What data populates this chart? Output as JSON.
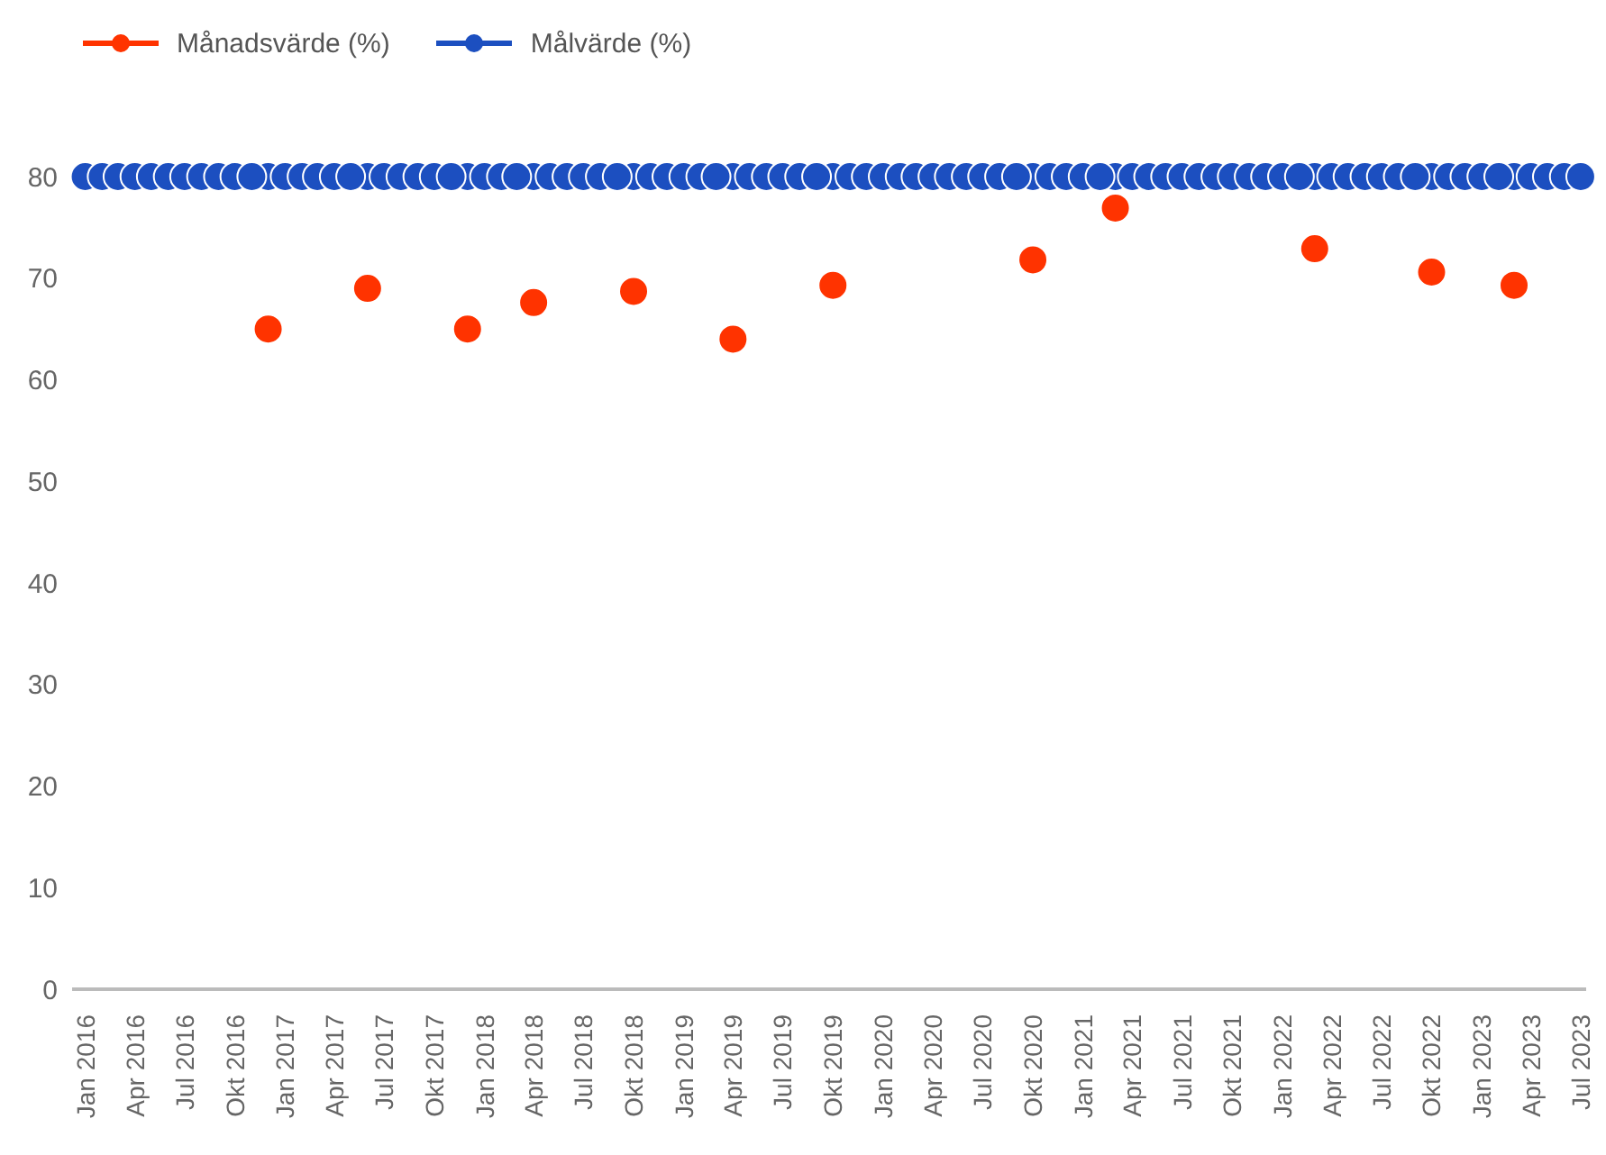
{
  "chart_data": {
    "type": "scatter",
    "legend": "top left",
    "marker": "circle",
    "grid": false,
    "x": [
      "2016-01",
      "2016-02",
      "2016-03",
      "2016-04",
      "2016-05",
      "2016-06",
      "2016-07",
      "2016-08",
      "2016-09",
      "2016-10",
      "2016-11",
      "2016-12",
      "2017-01",
      "2017-02",
      "2017-03",
      "2017-04",
      "2017-05",
      "2017-06",
      "2017-07",
      "2017-08",
      "2017-09",
      "2017-10",
      "2017-11",
      "2017-12",
      "2018-01",
      "2018-02",
      "2018-03",
      "2018-04",
      "2018-05",
      "2018-06",
      "2018-07",
      "2018-08",
      "2018-09",
      "2018-10",
      "2018-11",
      "2018-12",
      "2019-01",
      "2019-02",
      "2019-03",
      "2019-04",
      "2019-05",
      "2019-06",
      "2019-07",
      "2019-08",
      "2019-09",
      "2019-10",
      "2019-11",
      "2019-12",
      "2020-01",
      "2020-02",
      "2020-03",
      "2020-04",
      "2020-05",
      "2020-06",
      "2020-07",
      "2020-08",
      "2020-09",
      "2020-10",
      "2020-11",
      "2020-12",
      "2021-01",
      "2021-02",
      "2021-03",
      "2021-04",
      "2021-05",
      "2021-06",
      "2021-07",
      "2021-08",
      "2021-09",
      "2021-10",
      "2021-11",
      "2021-12",
      "2022-01",
      "2022-02",
      "2022-03",
      "2022-04",
      "2022-05",
      "2022-06",
      "2022-07",
      "2022-08",
      "2022-09",
      "2022-10",
      "2022-11",
      "2022-12",
      "2023-01",
      "2023-02",
      "2023-03",
      "2023-04",
      "2023-05",
      "2023-06",
      "2023-07"
    ],
    "series": [
      {
        "name": "Månadsvärde (%)",
        "color": "#ff3300",
        "x": [
          "2016-12",
          "2017-06",
          "2017-12",
          "2018-04",
          "2018-10",
          "2019-04",
          "2019-10",
          "2020-10",
          "2021-03",
          "2022-03",
          "2022-10",
          "2023-03"
        ],
        "values": [
          65,
          69,
          65,
          67.6,
          68.7,
          64,
          69.3,
          71.8,
          76.9,
          72.9,
          70.6,
          69.3
        ]
      },
      {
        "name": "Målvärde (%)",
        "color": "#1c4fc0",
        "values": [
          80,
          80,
          80,
          80,
          80,
          80,
          80,
          80,
          80,
          80,
          80,
          80,
          80,
          80,
          80,
          80,
          80,
          80,
          80,
          80,
          80,
          80,
          80,
          80,
          80,
          80,
          80,
          80,
          80,
          80,
          80,
          80,
          80,
          80,
          80,
          80,
          80,
          80,
          80,
          80,
          80,
          80,
          80,
          80,
          80,
          80,
          80,
          80,
          80,
          80,
          80,
          80,
          80,
          80,
          80,
          80,
          80,
          80,
          80,
          80,
          80,
          80,
          80,
          80,
          80,
          80,
          80,
          80,
          80,
          80,
          80,
          80,
          80,
          80,
          80,
          80,
          80,
          80,
          80,
          80,
          80,
          80,
          80,
          80,
          80,
          80,
          80,
          80,
          80,
          80,
          80
        ]
      }
    ],
    "xlim": [
      "2015-12-08",
      "2023-07-11"
    ],
    "xticks": [
      {
        "value": "2016-01",
        "label": "Jan 2016"
      },
      {
        "value": "2016-04",
        "label": "Apr 2016"
      },
      {
        "value": "2016-07",
        "label": "Jul 2016"
      },
      {
        "value": "2016-10",
        "label": "Okt 2016"
      },
      {
        "value": "2017-01",
        "label": "Jan 2017"
      },
      {
        "value": "2017-04",
        "label": "Apr 2017"
      },
      {
        "value": "2017-07",
        "label": "Jul 2017"
      },
      {
        "value": "2017-10",
        "label": "Okt 2017"
      },
      {
        "value": "2018-01",
        "label": "Jan 2018"
      },
      {
        "value": "2018-04",
        "label": "Apr 2018"
      },
      {
        "value": "2018-07",
        "label": "Jul 2018"
      },
      {
        "value": "2018-10",
        "label": "Okt 2018"
      },
      {
        "value": "2019-01",
        "label": "Jan 2019"
      },
      {
        "value": "2019-04",
        "label": "Apr 2019"
      },
      {
        "value": "2019-07",
        "label": "Jul 2019"
      },
      {
        "value": "2019-10",
        "label": "Okt 2019"
      },
      {
        "value": "2020-01",
        "label": "Jan 2020"
      },
      {
        "value": "2020-04",
        "label": "Apr 2020"
      },
      {
        "value": "2020-07",
        "label": "Jul 2020"
      },
      {
        "value": "2020-10",
        "label": "Okt 2020"
      },
      {
        "value": "2021-01",
        "label": "Jan 2021"
      },
      {
        "value": "2021-04",
        "label": "Apr 2021"
      },
      {
        "value": "2021-07",
        "label": "Jul 2021"
      },
      {
        "value": "2021-10",
        "label": "Okt 2021"
      },
      {
        "value": "2022-01",
        "label": "Jan 2022"
      },
      {
        "value": "2022-04",
        "label": "Apr 2022"
      },
      {
        "value": "2022-07",
        "label": "Jul 2022"
      },
      {
        "value": "2022-10",
        "label": "Okt 2022"
      },
      {
        "value": "2023-01",
        "label": "Jan 2023"
      },
      {
        "value": "2023-04",
        "label": "Apr 2023"
      },
      {
        "value": "2023-07",
        "label": "Jul 2023"
      }
    ],
    "ylim": [
      0,
      80
    ],
    "yticks": [
      0,
      10,
      20,
      30,
      40,
      50,
      60,
      70,
      80
    ]
  }
}
